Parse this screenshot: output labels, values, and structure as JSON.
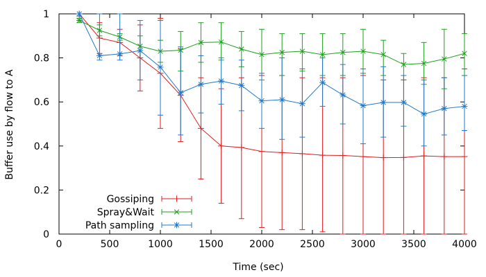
{
  "chart_data": {
    "type": "line",
    "title": "",
    "xlabel": "Time (sec)",
    "ylabel": "Buffer use by flow to A",
    "xlim": [
      0,
      4000
    ],
    "ylim": [
      0,
      1
    ],
    "xticks": [
      0,
      500,
      1000,
      1500,
      2000,
      2500,
      3000,
      3500,
      4000
    ],
    "yticks": [
      0,
      0.2,
      0.4,
      0.6,
      0.8,
      1
    ],
    "grid": false,
    "legend_position": "bottom-left",
    "x": [
      200,
      400,
      600,
      800,
      1000,
      1200,
      1400,
      1600,
      1800,
      2000,
      2200,
      2400,
      2600,
      2800,
      3000,
      3200,
      3400,
      3600,
      3800,
      4000
    ],
    "series": [
      {
        "name": "Gossiping",
        "color": "#e41a1c",
        "marker": "plus",
        "values": [
          1.0,
          0.89,
          0.87,
          0.8,
          0.73,
          0.63,
          0.48,
          0.4,
          0.393,
          0.375,
          0.37,
          0.365,
          0.358,
          0.357,
          0.352,
          0.347,
          0.348,
          0.355,
          0.352,
          0.352
        ],
        "err_low": [
          0.97,
          0.82,
          0.81,
          0.65,
          0.48,
          0.42,
          0.25,
          0.14,
          0.07,
          0.03,
          0.02,
          0.02,
          0.01,
          0.0,
          0.0,
          0.0,
          0.0,
          0.0,
          0.0,
          0.0
        ],
        "err_high": [
          1.0,
          0.96,
          0.93,
          0.95,
          0.98,
          0.84,
          0.71,
          0.66,
          0.71,
          0.72,
          0.72,
          0.71,
          0.71,
          0.71,
          0.72,
          0.7,
          0.7,
          0.71,
          0.71,
          0.75
        ]
      },
      {
        "name": "Spray&Wait",
        "color": "#1aa01a",
        "marker": "cross",
        "values": [
          0.97,
          0.925,
          0.895,
          0.853,
          0.83,
          0.835,
          0.87,
          0.872,
          0.84,
          0.815,
          0.825,
          0.83,
          0.815,
          0.825,
          0.83,
          0.815,
          0.77,
          0.775,
          0.795,
          0.82
        ],
        "err_low": [
          0.96,
          0.9,
          0.88,
          0.8,
          0.78,
          0.74,
          0.78,
          0.79,
          0.76,
          0.7,
          0.72,
          0.74,
          0.72,
          0.72,
          0.73,
          0.72,
          0.7,
          0.68,
          0.66,
          0.72
        ],
        "err_high": [
          0.98,
          0.95,
          0.91,
          0.9,
          0.88,
          0.92,
          0.96,
          0.96,
          0.92,
          0.93,
          0.91,
          0.91,
          0.91,
          0.91,
          0.93,
          0.88,
          0.82,
          0.87,
          0.93,
          0.91
        ]
      },
      {
        "name": "Path sampling",
        "color": "#1f78c8",
        "marker": "star",
        "values": [
          1.0,
          0.81,
          0.818,
          0.833,
          0.758,
          0.642,
          0.68,
          0.695,
          0.675,
          0.605,
          0.61,
          0.592,
          0.688,
          0.632,
          0.583,
          0.598,
          0.598,
          0.545,
          0.57,
          0.58
        ],
        "err_low": [
          0.99,
          0.79,
          0.79,
          0.7,
          0.54,
          0.45,
          0.55,
          0.59,
          0.56,
          0.48,
          0.43,
          0.44,
          0.58,
          0.5,
          0.41,
          0.44,
          0.49,
          0.4,
          0.45,
          0.47
        ],
        "err_high": [
          1.0,
          1.0,
          1.0,
          0.97,
          0.97,
          0.85,
          0.81,
          0.8,
          0.79,
          0.73,
          0.8,
          0.75,
          0.8,
          0.77,
          0.75,
          0.76,
          0.72,
          0.7,
          0.71,
          0.72
        ]
      }
    ]
  }
}
